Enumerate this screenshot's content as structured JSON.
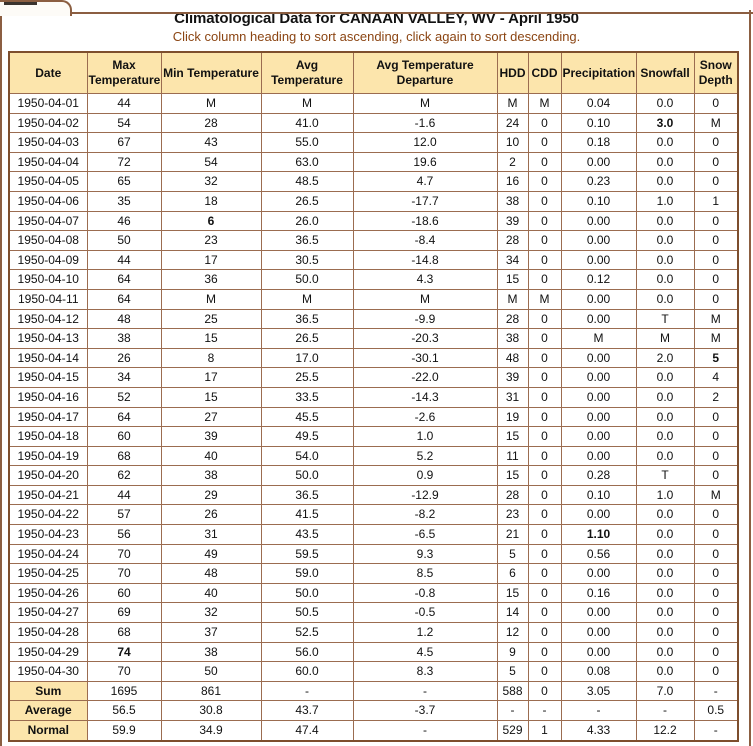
{
  "page": {
    "title": "Climatological Data for CANAAN VALLEY, WV - April 1950",
    "subtitle": "Click column heading to sort ascending, click again to sort descending."
  },
  "colors": {
    "panel_border": "#8b5e41",
    "cell_border": "#9b6c50",
    "header_bg": "#fce5ac",
    "subtitle_text": "#8b4513",
    "highlight_green": "#228b22",
    "highlight_blue": "#3333aa",
    "highlight_red": "#bb2222"
  },
  "table": {
    "columns": [
      {
        "key": "date",
        "label": "Date"
      },
      {
        "key": "max-temperature",
        "label": "Max Temperature"
      },
      {
        "key": "min-temperature",
        "label": "Min Temperature"
      },
      {
        "key": "avg-temperature",
        "label": "Avg Temperature"
      },
      {
        "key": "avg-temperature-departure",
        "label": "Avg Temperature Departure"
      },
      {
        "key": "hdd",
        "label": "HDD"
      },
      {
        "key": "cdd",
        "label": "CDD"
      },
      {
        "key": "precipitation",
        "label": "Precipitation"
      },
      {
        "key": "snowfall",
        "label": "Snowfall"
      },
      {
        "key": "snow-depth",
        "label": "Snow Depth"
      }
    ],
    "rows": [
      [
        "1950-04-01",
        "44",
        "M",
        "M",
        "M",
        "M",
        "M",
        "0.04",
        "0.0",
        "0"
      ],
      [
        "1950-04-02",
        "54",
        "28",
        "41.0",
        "-1.6",
        "24",
        "0",
        "0.10",
        "3.0",
        "M"
      ],
      [
        "1950-04-03",
        "67",
        "43",
        "55.0",
        "12.0",
        "10",
        "0",
        "0.18",
        "0.0",
        "0"
      ],
      [
        "1950-04-04",
        "72",
        "54",
        "63.0",
        "19.6",
        "2",
        "0",
        "0.00",
        "0.0",
        "0"
      ],
      [
        "1950-04-05",
        "65",
        "32",
        "48.5",
        "4.7",
        "16",
        "0",
        "0.23",
        "0.0",
        "0"
      ],
      [
        "1950-04-06",
        "35",
        "18",
        "26.5",
        "-17.7",
        "38",
        "0",
        "0.10",
        "1.0",
        "1"
      ],
      [
        "1950-04-07",
        "46",
        "6",
        "26.0",
        "-18.6",
        "39",
        "0",
        "0.00",
        "0.0",
        "0"
      ],
      [
        "1950-04-08",
        "50",
        "23",
        "36.5",
        "-8.4",
        "28",
        "0",
        "0.00",
        "0.0",
        "0"
      ],
      [
        "1950-04-09",
        "44",
        "17",
        "30.5",
        "-14.8",
        "34",
        "0",
        "0.00",
        "0.0",
        "0"
      ],
      [
        "1950-04-10",
        "64",
        "36",
        "50.0",
        "4.3",
        "15",
        "0",
        "0.12",
        "0.0",
        "0"
      ],
      [
        "1950-04-11",
        "64",
        "M",
        "M",
        "M",
        "M",
        "M",
        "0.00",
        "0.0",
        "0"
      ],
      [
        "1950-04-12",
        "48",
        "25",
        "36.5",
        "-9.9",
        "28",
        "0",
        "0.00",
        "T",
        "M"
      ],
      [
        "1950-04-13",
        "38",
        "15",
        "26.5",
        "-20.3",
        "38",
        "0",
        "M",
        "M",
        "M"
      ],
      [
        "1950-04-14",
        "26",
        "8",
        "17.0",
        "-30.1",
        "48",
        "0",
        "0.00",
        "2.0",
        "5"
      ],
      [
        "1950-04-15",
        "34",
        "17",
        "25.5",
        "-22.0",
        "39",
        "0",
        "0.00",
        "0.0",
        "4"
      ],
      [
        "1950-04-16",
        "52",
        "15",
        "33.5",
        "-14.3",
        "31",
        "0",
        "0.00",
        "0.0",
        "2"
      ],
      [
        "1950-04-17",
        "64",
        "27",
        "45.5",
        "-2.6",
        "19",
        "0",
        "0.00",
        "0.0",
        "0"
      ],
      [
        "1950-04-18",
        "60",
        "39",
        "49.5",
        "1.0",
        "15",
        "0",
        "0.00",
        "0.0",
        "0"
      ],
      [
        "1950-04-19",
        "68",
        "40",
        "54.0",
        "5.2",
        "11",
        "0",
        "0.00",
        "0.0",
        "0"
      ],
      [
        "1950-04-20",
        "62",
        "38",
        "50.0",
        "0.9",
        "15",
        "0",
        "0.28",
        "T",
        "0"
      ],
      [
        "1950-04-21",
        "44",
        "29",
        "36.5",
        "-12.9",
        "28",
        "0",
        "0.10",
        "1.0",
        "M"
      ],
      [
        "1950-04-22",
        "57",
        "26",
        "41.5",
        "-8.2",
        "23",
        "0",
        "0.00",
        "0.0",
        "0"
      ],
      [
        "1950-04-23",
        "56",
        "31",
        "43.5",
        "-6.5",
        "21",
        "0",
        "1.10",
        "0.0",
        "0"
      ],
      [
        "1950-04-24",
        "70",
        "49",
        "59.5",
        "9.3",
        "5",
        "0",
        "0.56",
        "0.0",
        "0"
      ],
      [
        "1950-04-25",
        "70",
        "48",
        "59.0",
        "8.5",
        "6",
        "0",
        "0.00",
        "0.0",
        "0"
      ],
      [
        "1950-04-26",
        "60",
        "40",
        "50.0",
        "-0.8",
        "15",
        "0",
        "0.16",
        "0.0",
        "0"
      ],
      [
        "1950-04-27",
        "69",
        "32",
        "50.5",
        "-0.5",
        "14",
        "0",
        "0.00",
        "0.0",
        "0"
      ],
      [
        "1950-04-28",
        "68",
        "37",
        "52.5",
        "1.2",
        "12",
        "0",
        "0.00",
        "0.0",
        "0"
      ],
      [
        "1950-04-29",
        "74",
        "38",
        "56.0",
        "4.5",
        "9",
        "0",
        "0.00",
        "0.0",
        "0"
      ],
      [
        "1950-04-30",
        "70",
        "50",
        "60.0",
        "8.3",
        "5",
        "0",
        "0.08",
        "0.0",
        "0"
      ]
    ],
    "summary_rows": [
      [
        "Sum",
        "1695",
        "861",
        "-",
        "-",
        "588",
        "0",
        "3.05",
        "7.0",
        "-"
      ],
      [
        "Average",
        "56.5",
        "30.8",
        "43.7",
        "-3.7",
        "-",
        "-",
        "-",
        "-",
        "0.5"
      ],
      [
        "Normal",
        "59.9",
        "34.9",
        "47.4",
        "-",
        "529",
        "1",
        "4.33",
        "12.2",
        "-"
      ]
    ],
    "highlights": [
      {
        "row": 1,
        "col": 8,
        "color": "green"
      },
      {
        "row": 6,
        "col": 2,
        "color": "blue"
      },
      {
        "row": 13,
        "col": 9,
        "color": "green"
      },
      {
        "row": 22,
        "col": 7,
        "color": "green"
      },
      {
        "row": 28,
        "col": 1,
        "color": "red"
      }
    ]
  }
}
